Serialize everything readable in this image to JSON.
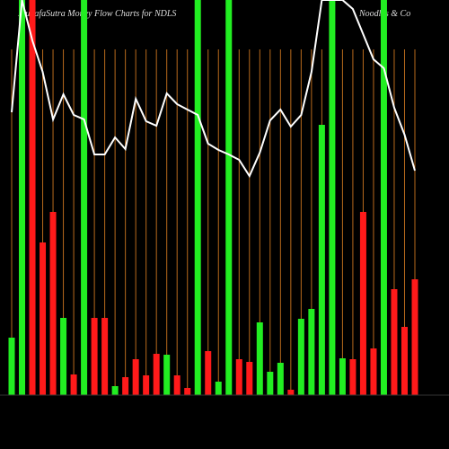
{
  "chart_data": {
    "type": "bar",
    "title": "MunafaSutra  Money  Flow  Charts for NDLS",
    "subtitle": "Noodles & Co",
    "ylim": [
      0,
      440
    ],
    "values": [
      64,
      440,
      440,
      170,
      204,
      86,
      23,
      440,
      86,
      86,
      10,
      20,
      40,
      22,
      46,
      45,
      22,
      8,
      440,
      49,
      15,
      440,
      40,
      37,
      81,
      26,
      36,
      6,
      85,
      96,
      301,
      440,
      41,
      40,
      204,
      52,
      440,
      118,
      76,
      129
    ],
    "colors": [
      "#22ee22",
      "#22ee22",
      "#ff1a1a",
      "#ff1a1a",
      "#ff1a1a",
      "#22ee22",
      "#ff1a1a",
      "#22ee22",
      "#ff1a1a",
      "#ff1a1a",
      "#22ee22",
      "#ff1a1a",
      "#ff1a1a",
      "#ff1a1a",
      "#ff1a1a",
      "#22ee22",
      "#ff1a1a",
      "#ff1a1a",
      "#22ee22",
      "#ff1a1a",
      "#22ee22",
      "#22ee22",
      "#ff1a1a",
      "#ff1a1a",
      "#22ee22",
      "#22ee22",
      "#22ee22",
      "#ff1a1a",
      "#22ee22",
      "#22ee22",
      "#22ee22",
      "#22ee22",
      "#22ee22",
      "#ff1a1a",
      "#ff1a1a",
      "#ff1a1a",
      "#22ee22",
      "#ff1a1a",
      "#ff1a1a",
      "#ff1a1a"
    ],
    "line": {
      "color": "#ffffff",
      "values": [
        315,
        440,
        395,
        360,
        307,
        335,
        312,
        307,
        268,
        268,
        287,
        274,
        330,
        305,
        300,
        336,
        324,
        318,
        312,
        280,
        273,
        268,
        262,
        244,
        270,
        306,
        318,
        299,
        312,
        360,
        440,
        440,
        440,
        430,
        402,
        374,
        364,
        320,
        290,
        250
      ]
    },
    "guide_color": "#b86a1c"
  }
}
